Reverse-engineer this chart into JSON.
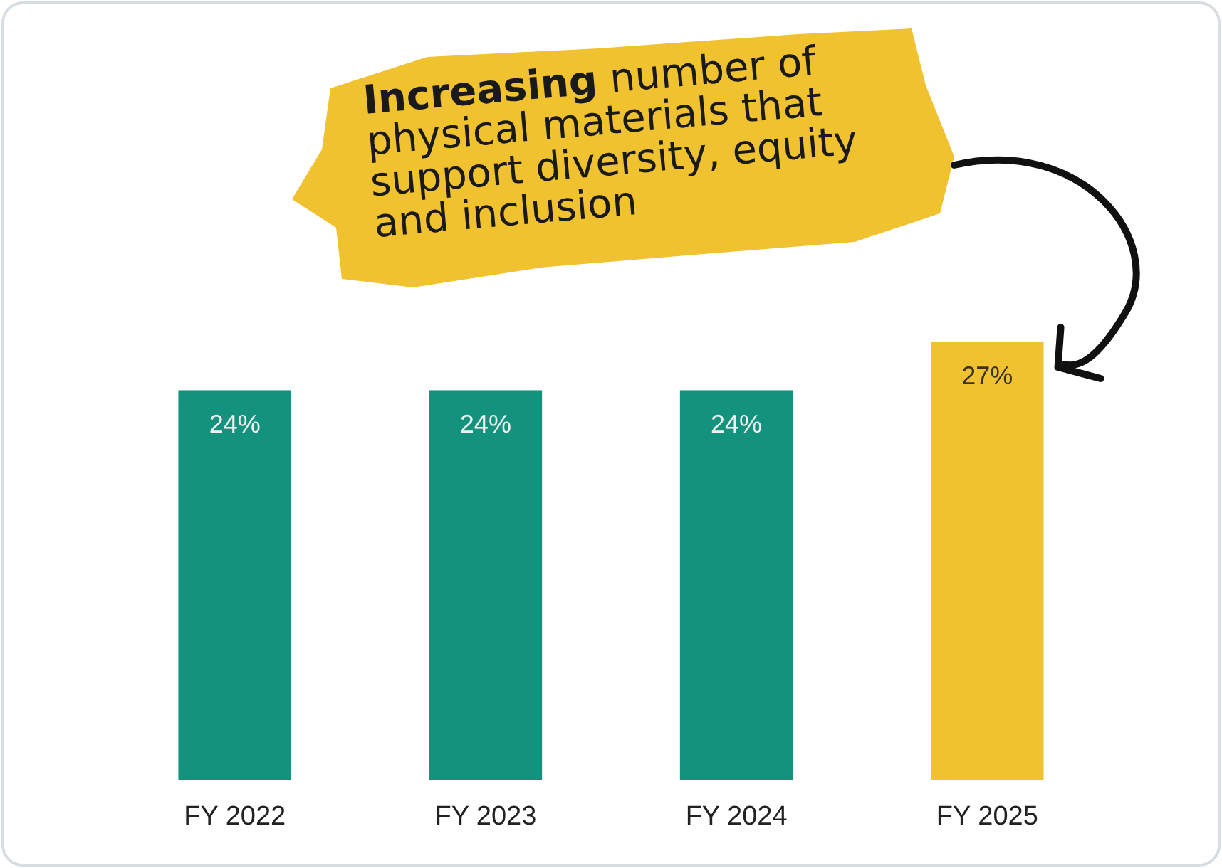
{
  "chart_data": {
    "type": "bar",
    "categories": [
      "FY 2022",
      "FY 2023",
      "FY 2024",
      "FY 2025"
    ],
    "values": [
      24,
      24,
      24,
      27
    ],
    "colors": [
      "#13937d",
      "#13937d",
      "#13937d",
      "#f0c230"
    ],
    "value_labels": [
      "24%",
      "24%",
      "24%",
      "27%"
    ],
    "ylim": [
      0,
      27
    ],
    "tick_labels": "x",
    "annotations": [
      "Increasing number of physical materials that support diversity, equity and inclusion"
    ]
  }
}
